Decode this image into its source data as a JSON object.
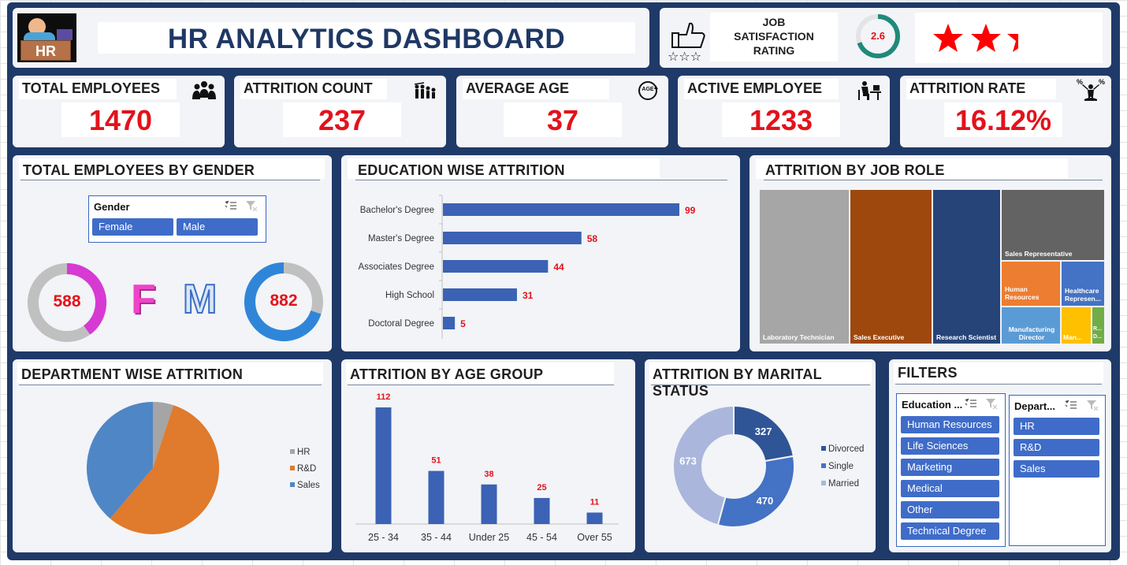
{
  "header": {
    "logo_text": "HR",
    "title": "HR ANALYTICS DASHBOARD",
    "job_satisfaction": {
      "label_line1": "JOB",
      "label_line2": "SATISFACTION",
      "label_line3": "RATING",
      "value": "2.6",
      "stars": 2.6,
      "max_stars": 3
    }
  },
  "kpis": [
    {
      "label": "TOTAL EMPLOYEES",
      "value": "1470",
      "icon": "people-group-icon"
    },
    {
      "label": "ATTRITION COUNT",
      "value": "237",
      "icon": "people-leaving-icon"
    },
    {
      "label": "AVERAGE AGE",
      "value": "37",
      "icon": "age-badge-icon",
      "icon_text": "AGE"
    },
    {
      "label": "ACTIVE EMPLOYEE",
      "value": "1233",
      "icon": "person-at-desk-icon"
    },
    {
      "label": "ATTRITION RATE",
      "value": "16.12%",
      "icon": "percent-person-icon",
      "icon_text": "%"
    }
  ],
  "gender": {
    "title": "TOTAL EMPLOYEES BY GENDER",
    "slicer_title": "Gender",
    "options": [
      "Female",
      "Male"
    ],
    "female_value": "588",
    "male_value": "882",
    "female_letter": "F",
    "male_letter": "M",
    "female_share": 0.4,
    "male_share": 0.6
  },
  "education": {
    "title": "EDUCATION WISE ATTRITION"
  },
  "jobrole": {
    "title": "ATTRITION BY JOB ROLE",
    "tiles": [
      {
        "label": "Laboratory Technician",
        "color": "#a6a6a6"
      },
      {
        "label": "Sales Executive",
        "color": "#9e480e"
      },
      {
        "label": "Research Scientist",
        "color": "#264478"
      },
      {
        "label": "Sales Representative",
        "color": "#636363"
      },
      {
        "label": "Human Resources",
        "color": "#ed7d31"
      },
      {
        "label": "Healthcare Represen...",
        "color": "#4472c4"
      },
      {
        "label": "Manufacturing Director",
        "color": "#5b9bd5"
      },
      {
        "label": "Man...",
        "color": "#ffc000"
      },
      {
        "label": "R... D...",
        "color": "#70ad47"
      }
    ]
  },
  "department": {
    "title": "DEPARTMENT WISE ATTRITION"
  },
  "agegroup": {
    "title": "ATTRITION BY AGE GROUP"
  },
  "marital": {
    "title": "ATTRITION BY MARITAL STATUS"
  },
  "filters": {
    "title": "FILTERS",
    "education_field": {
      "title": "Education ...",
      "options": [
        "Human Resources",
        "Life Sciences",
        "Marketing",
        "Medical",
        "Other",
        "Technical Degree"
      ]
    },
    "department": {
      "title": "Depart...",
      "options": [
        "HR",
        "R&D",
        "Sales"
      ]
    }
  },
  "chart_data": [
    {
      "type": "bar",
      "orientation": "horizontal",
      "categories": [
        "Bachelor's Degree",
        "Master's Degree",
        "Associates Degree",
        "High School",
        "Doctoral Degree"
      ],
      "values": [
        99,
        58,
        44,
        31,
        5
      ],
      "color": "#3b62b4"
    },
    {
      "type": "pie",
      "categories": [
        "HR",
        "R&D",
        "Sales"
      ],
      "values": [
        12,
        133,
        92
      ],
      "colors": [
        "#a5a5a5",
        "#e07a2c",
        "#4f86c6"
      ],
      "legend": "right"
    },
    {
      "type": "bar",
      "categories": [
        "25 - 34",
        "35 - 44",
        "Under 25",
        "45 - 54",
        "Over 55"
      ],
      "values": [
        112,
        51,
        38,
        25,
        11
      ],
      "color": "#3b62b4"
    },
    {
      "type": "pie",
      "donut": true,
      "categories": [
        "Divorced",
        "Single",
        "Married"
      ],
      "values": [
        327,
        470,
        673
      ],
      "colors": [
        "#2f5597",
        "#4472c4",
        "#aab6dc"
      ],
      "legend": "right"
    }
  ]
}
